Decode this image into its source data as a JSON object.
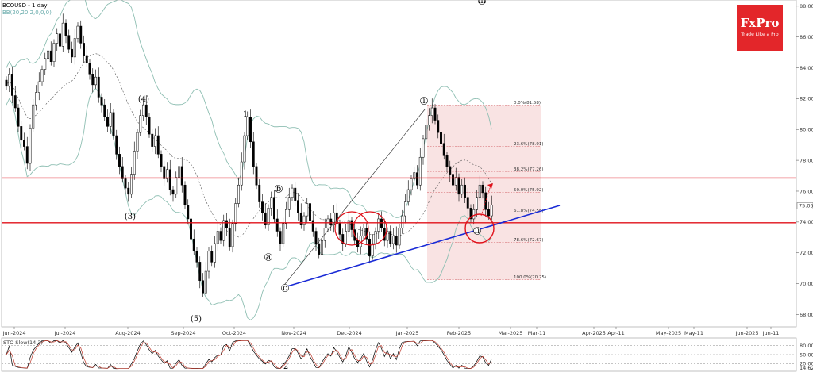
{
  "header": {
    "title": "BCOUSD - 1 day",
    "indicator": "BB(20,20,2,0,0,0)"
  },
  "logo": {
    "brand": "FxPro",
    "tagline": "Trade Like a Pro"
  },
  "chart_data": {
    "type": "candlestick",
    "symbol": "BCOUSD",
    "timeframe": "1 day",
    "y_axis": {
      "ticks": [
        "88.00",
        "86.00",
        "84.00",
        "82.00",
        "80.00",
        "78.00",
        "76.00",
        "74.00",
        "72.00",
        "70.00",
        "68.00"
      ],
      "range": [
        67.2,
        88.4
      ],
      "current_price_label": "75.05"
    },
    "x_axis": {
      "labels": [
        "Jun-2024",
        "Jul-2024",
        "Aug-2024",
        "Sep-2024",
        "Oct-2024",
        "Nov-2024",
        "Dec-2024",
        "Jan-2025",
        "Feb-2025",
        "Mar-2025",
        "Mar-11",
        "Apr-2025",
        "Apr-11",
        "May-2025",
        "May-11",
        "Jun-2025",
        "Jun-11"
      ]
    },
    "closes": [
      82.8,
      83.6,
      82.2,
      81.4,
      80.2,
      79.3,
      78.9,
      77.8,
      80.1,
      81.6,
      82.4,
      83.1,
      83.9,
      84.6,
      85.1,
      84.4,
      85.6,
      86.2,
      85.4,
      86.9,
      86.1,
      85.2,
      84.7,
      85.9,
      86.7,
      85.6,
      84.8,
      84.3,
      83.6,
      82.9,
      83.4,
      82.1,
      81.6,
      80.8,
      80.2,
      81.1,
      79.6,
      78.4,
      77.6,
      76.8,
      76.2,
      75.8,
      77.1,
      78.6,
      79.8,
      80.9,
      81.6,
      80.8,
      79.7,
      78.9,
      79.6,
      78.4,
      77.6,
      76.8,
      77.4,
      76.1,
      75.8,
      76.9,
      77.6,
      76.4,
      75.1,
      74.2,
      72.9,
      72.1,
      71.4,
      70.2,
      69.4,
      70.8,
      72.1,
      71.4,
      72.6,
      73.4,
      72.8,
      74.1,
      73.6,
      72.4,
      73.9,
      75.2,
      76.4,
      77.9,
      79.6,
      80.8,
      79.2,
      77.6,
      76.4,
      75.3,
      74.6,
      73.8,
      74.9,
      75.6,
      74.2,
      73.4,
      72.6,
      73.9,
      74.8,
      75.6,
      76.2,
      75.4,
      74.6,
      73.8,
      74.4,
      75.2,
      74.1,
      73.4,
      72.6,
      71.9,
      72.8,
      73.6,
      74.2,
      73.8,
      74.6,
      73.9,
      73.2,
      72.6,
      73.4,
      74.1,
      73.5,
      72.8,
      72.4,
      73.1,
      73.6,
      72.9,
      71.8,
      72.6,
      73.4,
      74.2,
      73.6,
      72.8,
      73.4,
      72.6,
      73.1,
      72.5,
      73.6,
      74.4,
      75.3,
      76.1,
      76.8,
      77.2,
      76.4,
      78.2,
      79.4,
      80.3,
      80.9,
      81.4,
      80.6,
      79.8,
      79.1,
      78.3,
      77.6,
      77.1,
      76.4,
      76.9,
      75.8,
      76.4,
      75.6,
      74.9,
      74.2,
      74.8,
      75.6,
      76.4,
      75.9,
      74.8,
      74.4,
      75.1
    ],
    "annotations": {
      "waves": [
        "(4)",
        "(3)",
        "(5)",
        "1",
        "2",
        "a",
        "b",
        "c",
        "i",
        "ii",
        "iii"
      ],
      "fib_levels": [
        {
          "label": "0.0%(81.58)",
          "price": 81.58
        },
        {
          "label": "23.6%(78.91)",
          "price": 78.91
        },
        {
          "label": "38.2%(77.26)",
          "price": 77.26
        },
        {
          "label": "50.0%(75.92)",
          "price": 75.92
        },
        {
          "label": "61.8%(74.58)",
          "price": 74.58
        },
        {
          "label": "78.6%(72.67)",
          "price": 72.67
        },
        {
          "label": "100.0%(70.25)",
          "price": 70.25
        }
      ],
      "resistance": 76.85,
      "support": 73.95
    },
    "oscillator": {
      "title": "STO Slow(14,3)",
      "ticks": [
        "80.00",
        "50.00",
        "20.00"
      ],
      "value_label": "14.625"
    }
  },
  "colors": {
    "bb": "#8fbfb3",
    "hline": "#e0111a",
    "trend": "#1a2bd6",
    "fib_fill": "#f7d9da",
    "fib_line": "#d97a7e",
    "bull": "#ffffff",
    "bear": "#000000",
    "sto_k": "#000000",
    "sto_d": "#c0392b"
  }
}
